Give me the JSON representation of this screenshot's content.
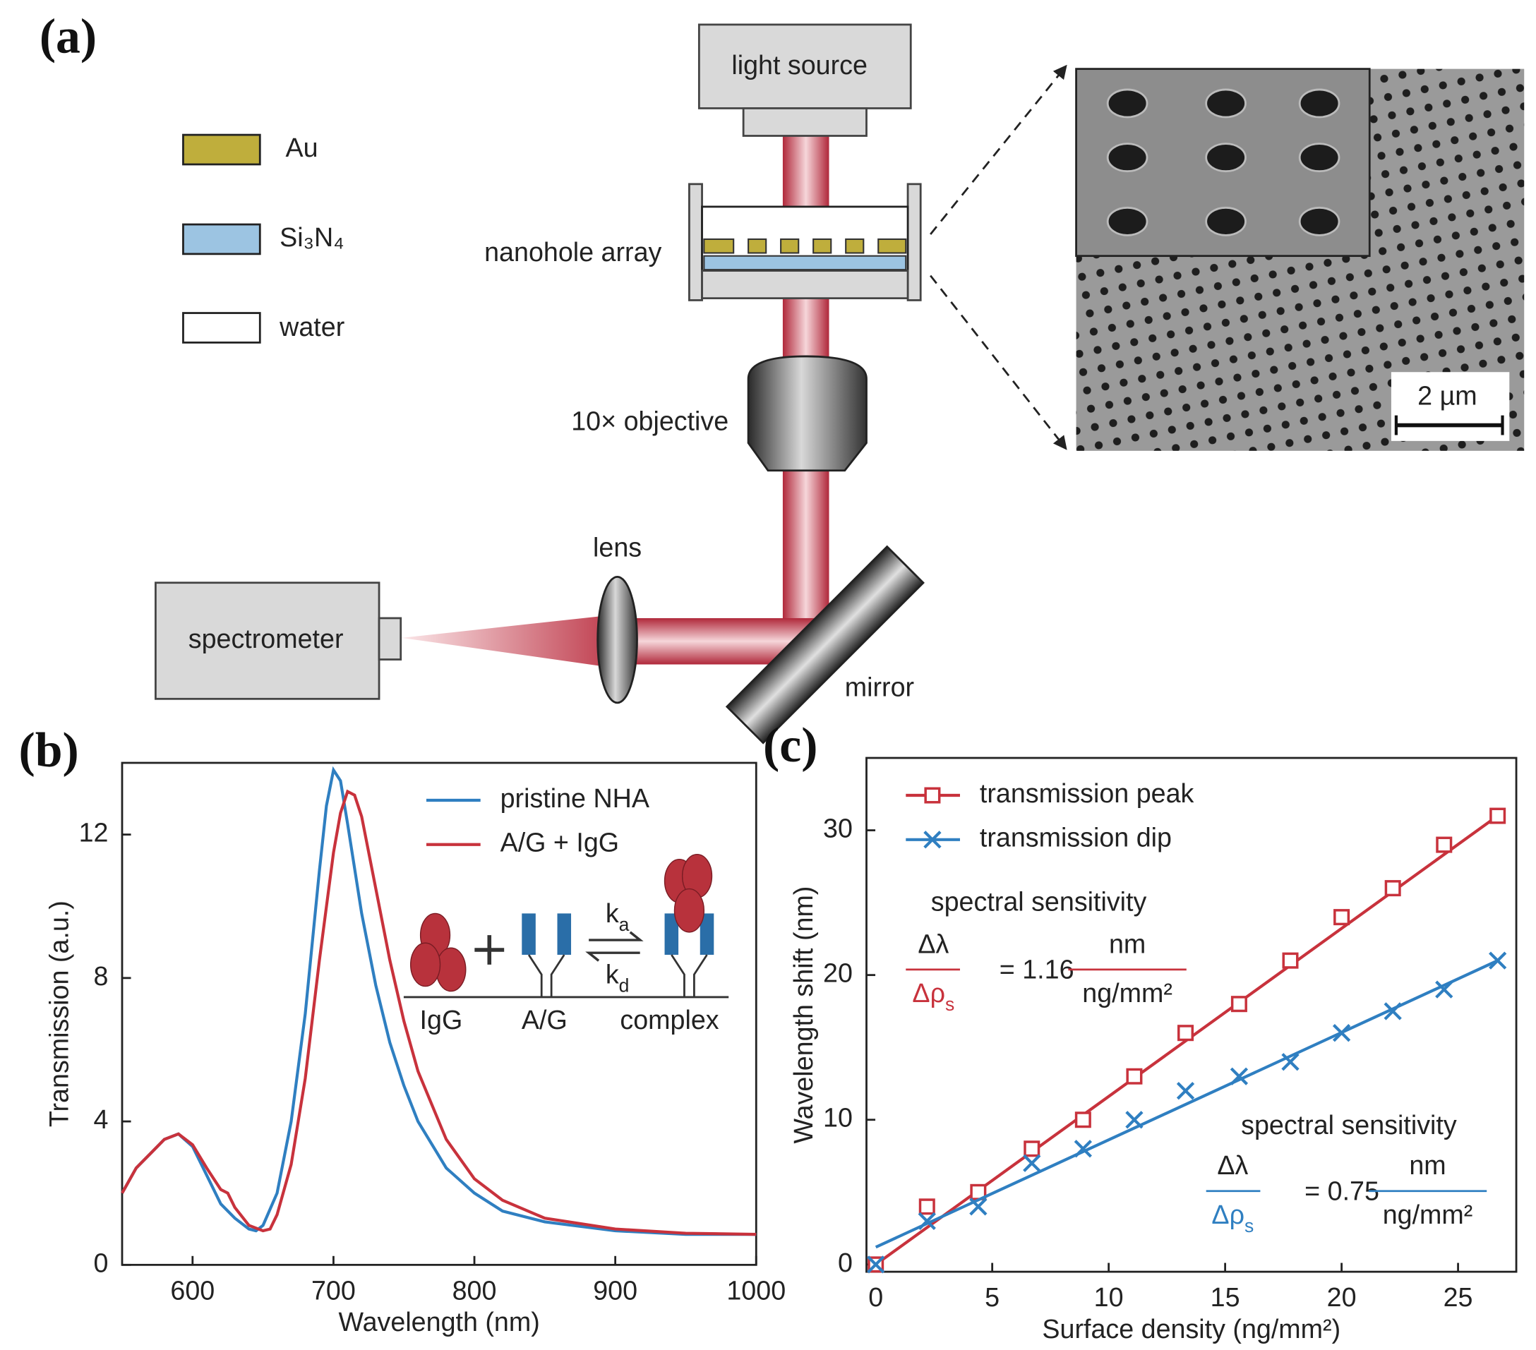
{
  "diagram": {
    "panel_label": "(a)",
    "legend": [
      {
        "label": "Au"
      },
      {
        "label": "Si₃N₄"
      },
      {
        "label": "water"
      }
    ],
    "light_source": "light source",
    "nanohole_array": "nanohole array",
    "objective": "10× objective",
    "lens": "lens",
    "spectrometer": "spectrometer",
    "mirror": "mirror",
    "scale_bar": "2 µm"
  },
  "chart_data": [
    {
      "type": "line",
      "panel_label": "(b)",
      "x_label": "Wavelength (nm)",
      "y_label": "Transmission (a.u.)",
      "xlim": [
        550,
        1000
      ],
      "ylim": [
        0,
        14
      ],
      "xticks": [
        600,
        700,
        800,
        900,
        1000
      ],
      "yticks": [
        0,
        4,
        8,
        12
      ],
      "grid": false,
      "legend": "upper right",
      "series": [
        {
          "name": "pristine NHA",
          "color": "#2f7fc1",
          "x": [
            550,
            560,
            570,
            580,
            590,
            600,
            610,
            620,
            630,
            640,
            645,
            650,
            660,
            670,
            680,
            690,
            695,
            700,
            705,
            710,
            720,
            730,
            740,
            750,
            760,
            780,
            800,
            820,
            850,
            900,
            950,
            1000
          ],
          "values": [
            2.0,
            2.7,
            3.1,
            3.5,
            3.65,
            3.3,
            2.5,
            1.7,
            1.3,
            1.0,
            0.95,
            1.1,
            2.0,
            4.0,
            7.0,
            11.0,
            12.8,
            13.8,
            13.5,
            12.3,
            9.8,
            7.8,
            6.2,
            5.0,
            4.0,
            2.7,
            2.0,
            1.5,
            1.2,
            0.95,
            0.85,
            0.85
          ]
        },
        {
          "name": "A/G + IgG",
          "color": "#c8323c",
          "x": [
            550,
            560,
            570,
            580,
            590,
            600,
            610,
            620,
            625,
            630,
            640,
            650,
            655,
            660,
            670,
            680,
            690,
            700,
            705,
            710,
            715,
            720,
            730,
            740,
            750,
            760,
            780,
            800,
            820,
            850,
            900,
            950,
            1000
          ],
          "values": [
            2.0,
            2.7,
            3.1,
            3.5,
            3.65,
            3.35,
            2.7,
            2.1,
            2.0,
            1.6,
            1.1,
            0.95,
            1.0,
            1.4,
            2.8,
            5.2,
            8.5,
            11.5,
            12.6,
            13.2,
            13.1,
            12.5,
            10.5,
            8.5,
            6.8,
            5.4,
            3.5,
            2.4,
            1.8,
            1.3,
            1.0,
            0.88,
            0.85
          ]
        }
      ],
      "inset": {
        "molecules": [
          "IgG",
          "A/G",
          "complex"
        ],
        "forward_rate": [
          "k",
          "a"
        ],
        "reverse_rate": [
          "k",
          "d"
        ]
      }
    },
    {
      "type": "scatter",
      "panel_label": "(c)",
      "x_label": "Surface density (ng/mm²)",
      "y_label": "Wavelength shift (nm)",
      "xlim": [
        -0.4,
        27.5
      ],
      "ylim": [
        -0.5,
        35
      ],
      "xticks": [
        0,
        5,
        10,
        15,
        20,
        25
      ],
      "yticks": [
        0,
        10,
        20,
        30
      ],
      "grid": false,
      "legend": "upper left",
      "series": [
        {
          "name": "transmission peak",
          "color": "#c8323c",
          "marker": "square",
          "x": [
            0,
            2.2,
            4.4,
            6.7,
            8.9,
            11.1,
            13.3,
            15.6,
            17.8,
            20,
            22.2,
            24.4,
            26.7
          ],
          "values": [
            0,
            4,
            5,
            8,
            10,
            13,
            16,
            18,
            21,
            24,
            26,
            29,
            31
          ],
          "fit": {
            "x": [
              0,
              26.7
            ],
            "values": [
              0,
              31
            ]
          }
        },
        {
          "name": "transmission dip",
          "color": "#2f7fc1",
          "marker": "x",
          "x": [
            0,
            2.2,
            4.4,
            6.7,
            8.9,
            11.1,
            13.3,
            15.6,
            17.8,
            20,
            22.2,
            24.4,
            26.7
          ],
          "values": [
            0,
            3,
            4,
            7,
            8,
            10,
            12,
            13,
            14,
            16,
            17.5,
            19,
            21
          ],
          "fit": {
            "x": [
              0,
              26.7
            ],
            "values": [
              1.2,
              21
            ]
          }
        }
      ],
      "annotations": [
        {
          "text": "spectral sensitivity",
          "numerator": "Δλ",
          "denominator": [
            "Δρ",
            "s"
          ],
          "equals": "= 1.16",
          "unit_numerator": "nm",
          "unit_denominator": "ng/mm²"
        },
        {
          "text": "spectral sensitivity",
          "numerator": "Δλ",
          "denominator": [
            "Δρ",
            "s"
          ],
          "equals": "= 0.75",
          "unit_numerator": "nm",
          "unit_denominator": "ng/mm²"
        }
      ]
    }
  ]
}
